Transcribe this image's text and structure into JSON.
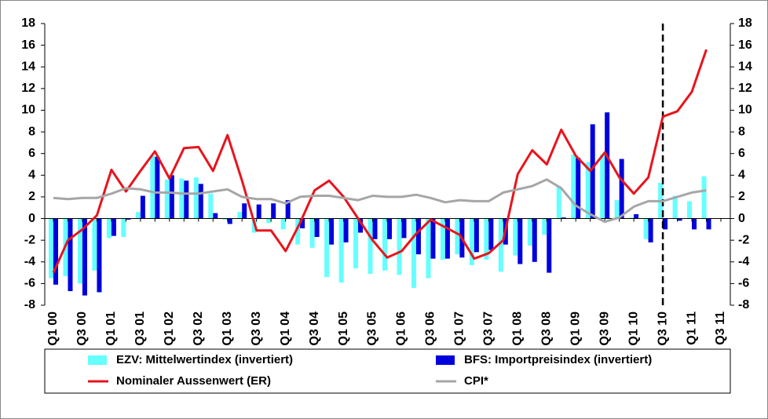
{
  "chart_data": {
    "type": "bar_line",
    "categories": [
      "Q1 00",
      null,
      "Q3 00",
      null,
      "Q1 01",
      null,
      "Q3 01",
      null,
      "Q1 02",
      null,
      "Q3 02",
      null,
      "Q1 03",
      null,
      "Q3 03",
      null,
      "Q1 04",
      null,
      "Q3 04",
      null,
      "Q1 05",
      null,
      "Q3 05",
      null,
      "Q1 06",
      null,
      "Q3 06",
      null,
      "Q1 07",
      null,
      "Q3 07",
      null,
      "Q1 08",
      null,
      "Q3 08",
      null,
      "Q1 09",
      null,
      "Q3 09",
      null,
      "Q1 10",
      null,
      "Q3 10",
      null,
      "Q1 11",
      null,
      "Q3 11"
    ],
    "series": [
      {
        "name": "EZV: Mittelwertindex (invertiert)",
        "kind": "bar",
        "color": "#66ffff",
        "values": [
          -5.5,
          -5.3,
          -6.0,
          -4.8,
          -1.8,
          -1.7,
          0.6,
          5.8,
          3.6,
          3.7,
          3.8,
          2.3,
          -0.1,
          0.6,
          -1.3,
          -0.4,
          -1.0,
          -2.4,
          -2.7,
          -5.4,
          -5.9,
          -4.6,
          -5.1,
          -4.8,
          -5.2,
          -6.4,
          -5.5,
          -3.8,
          -3.3,
          -4.3,
          -3.8,
          -4.9,
          -3.4,
          -2.5,
          -1.5,
          3.0,
          5.9,
          5.2,
          5.9,
          1.7,
          0.1,
          -1.9,
          3.3,
          2.1,
          1.6,
          3.9,
          null
        ]
      },
      {
        "name": "BFS: Importpreisindex (invertiert)",
        "kind": "bar",
        "color": "#0000dd",
        "values": [
          -6.1,
          -6.7,
          -7.1,
          -6.8,
          -1.6,
          -0.1,
          2.1,
          5.7,
          4.0,
          3.5,
          3.2,
          0.5,
          -0.5,
          1.4,
          1.3,
          1.4,
          1.7,
          -0.9,
          -1.7,
          -2.4,
          -2.2,
          -1.3,
          -1.9,
          -1.9,
          -1.8,
          -3.3,
          -3.7,
          -3.7,
          -3.6,
          -3.1,
          -2.9,
          -2.4,
          -4.2,
          -4.0,
          -5.0,
          0.1,
          5.6,
          8.7,
          9.8,
          5.5,
          0.4,
          -2.2,
          -1.0,
          -0.2,
          -1.0,
          -1.0,
          null
        ]
      },
      {
        "name": "Nominaler Aussenwert (ER)",
        "kind": "line",
        "color": "#e8141c",
        "values": [
          -5.0,
          -2.0,
          -1.0,
          0.3,
          4.5,
          2.5,
          4.4,
          6.2,
          3.7,
          6.5,
          6.6,
          4.4,
          7.7,
          3.5,
          -1.1,
          -1.1,
          -3.0,
          -0.4,
          2.6,
          3.5,
          2.0,
          0.0,
          -2.0,
          -3.6,
          -3.0,
          -1.4,
          -0.1,
          -0.8,
          -1.5,
          -3.7,
          -3.2,
          -2.0,
          4.1,
          6.3,
          5.0,
          8.2,
          5.8,
          4.4,
          6.1,
          3.8,
          2.3,
          3.8,
          9.4,
          9.9,
          11.7,
          15.6,
          null
        ]
      },
      {
        "name": "CPI*",
        "kind": "line",
        "color": "#a6a6a6",
        "values": [
          1.9,
          1.8,
          1.9,
          1.9,
          2.3,
          2.8,
          2.7,
          2.4,
          2.4,
          2.3,
          2.3,
          2.5,
          2.7,
          2.0,
          1.8,
          1.8,
          1.4,
          2.0,
          2.1,
          2.1,
          1.9,
          1.7,
          2.1,
          2.0,
          2.0,
          2.2,
          1.9,
          1.5,
          1.7,
          1.6,
          1.6,
          2.4,
          2.7,
          3.0,
          3.6,
          2.8,
          1.2,
          0.4,
          -0.3,
          0.1,
          1.1,
          1.6,
          1.6,
          2.0,
          2.4,
          2.6,
          null
        ]
      }
    ],
    "ylim": [
      -8,
      18
    ],
    "yticks": [
      -8,
      -6,
      -4,
      -2,
      0,
      2,
      4,
      6,
      8,
      10,
      12,
      14,
      16,
      18
    ],
    "y2lim": [
      -8,
      18
    ],
    "y2ticks": [
      -8,
      -6,
      -4,
      -2,
      0,
      2,
      4,
      6,
      8,
      10,
      12,
      14,
      16,
      18
    ],
    "vline": {
      "category": 42,
      "style": "dashed"
    },
    "grid": false,
    "legend": "bottom"
  }
}
